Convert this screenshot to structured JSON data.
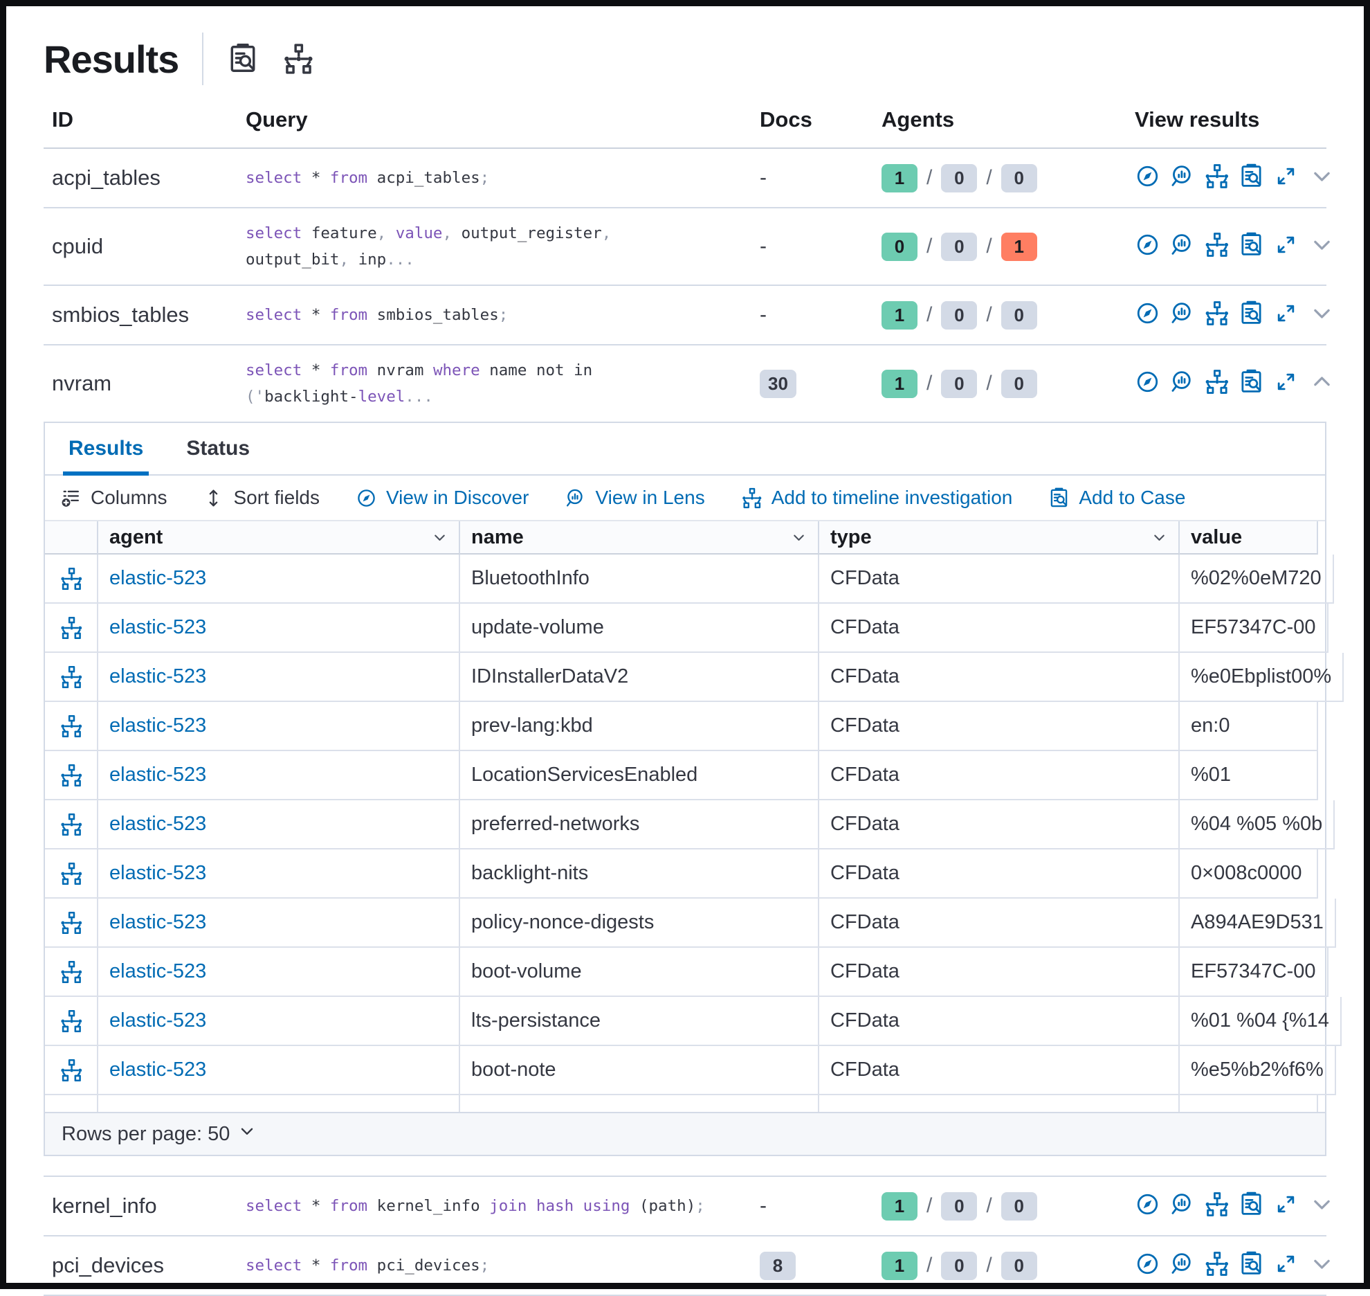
{
  "page": {
    "title": "Results"
  },
  "colors": {
    "primary": "#006BB4",
    "success_badge": "#6DCCB1",
    "danger_badge": "#FF7E62",
    "default_badge": "#D3DAE6",
    "sql_keyword": "#7C54B7"
  },
  "results_table": {
    "columns": [
      "ID",
      "Query",
      "Docs",
      "Agents",
      "View results"
    ],
    "view_actions": [
      "discover",
      "lens",
      "timeline",
      "case",
      "expand"
    ],
    "rows": [
      {
        "id": "acpi_tables",
        "docs": "-",
        "expanded": false,
        "query": [
          [
            "kw",
            "select"
          ],
          [
            "pl",
            " * "
          ],
          [
            "kw",
            "from"
          ],
          [
            "pl",
            " acpi_tables"
          ],
          [
            "pu",
            ";"
          ]
        ],
        "agents": [
          [
            "1",
            "success"
          ],
          [
            "0",
            "default"
          ],
          [
            "0",
            "default"
          ]
        ]
      },
      {
        "id": "cpuid",
        "docs": "-",
        "expanded": false,
        "query": [
          [
            "kw",
            "select"
          ],
          [
            "pl",
            " feature"
          ],
          [
            "pu",
            ", "
          ],
          [
            "kw",
            "value"
          ],
          [
            "pu",
            ", "
          ],
          [
            "pl",
            "output_register"
          ],
          [
            "pu",
            ","
          ],
          [
            "br",
            ""
          ],
          [
            "pl",
            "output_bit"
          ],
          [
            "pu",
            ", "
          ],
          [
            "pl",
            "inp"
          ],
          [
            "pu",
            "..."
          ]
        ],
        "agents": [
          [
            "0",
            "success"
          ],
          [
            "0",
            "default"
          ],
          [
            "1",
            "danger"
          ]
        ]
      },
      {
        "id": "smbios_tables",
        "docs": "-",
        "expanded": false,
        "query": [
          [
            "kw",
            "select"
          ],
          [
            "pl",
            " * "
          ],
          [
            "kw",
            "from"
          ],
          [
            "pl",
            " smbios_tables"
          ],
          [
            "pu",
            ";"
          ]
        ],
        "agents": [
          [
            "1",
            "success"
          ],
          [
            "0",
            "default"
          ],
          [
            "0",
            "default"
          ]
        ]
      },
      {
        "id": "nvram",
        "docs": "30",
        "expanded": true,
        "query": [
          [
            "kw",
            "select"
          ],
          [
            "pl",
            " * "
          ],
          [
            "kw",
            "from"
          ],
          [
            "pl",
            " nvram "
          ],
          [
            "kw",
            "where"
          ],
          [
            "pl",
            " name not in"
          ],
          [
            "br",
            ""
          ],
          [
            "pu",
            "('"
          ],
          [
            "pl",
            "backlight-"
          ],
          [
            "kw",
            "level"
          ],
          [
            "pu",
            "..."
          ]
        ],
        "agents": [
          [
            "1",
            "success"
          ],
          [
            "0",
            "default"
          ],
          [
            "0",
            "default"
          ]
        ]
      },
      {
        "id": "kernel_info",
        "docs": "-",
        "expanded": false,
        "query": [
          [
            "kw",
            "select"
          ],
          [
            "pl",
            " * "
          ],
          [
            "kw",
            "from"
          ],
          [
            "pl",
            " kernel_info "
          ],
          [
            "kw",
            "join hash using"
          ],
          [
            "pl",
            " (path)"
          ],
          [
            "pu",
            ";"
          ]
        ],
        "agents": [
          [
            "1",
            "success"
          ],
          [
            "0",
            "default"
          ],
          [
            "0",
            "default"
          ]
        ]
      },
      {
        "id": "pci_devices",
        "docs": "8",
        "expanded": false,
        "query": [
          [
            "kw",
            "select"
          ],
          [
            "pl",
            " * "
          ],
          [
            "kw",
            "from"
          ],
          [
            "pl",
            " pci_devices"
          ],
          [
            "pu",
            ";"
          ]
        ],
        "agents": [
          [
            "1",
            "success"
          ],
          [
            "0",
            "default"
          ],
          [
            "0",
            "default"
          ]
        ]
      }
    ]
  },
  "panel": {
    "tabs": [
      {
        "label": "Results",
        "active": true
      },
      {
        "label": "Status",
        "active": false
      }
    ],
    "toolbar": [
      {
        "label": "Columns",
        "icon": "columns",
        "style": "dark"
      },
      {
        "label": "Sort fields",
        "icon": "sort",
        "style": "dark"
      },
      {
        "label": "View in Discover",
        "icon": "discover",
        "style": "link"
      },
      {
        "label": "View in Lens",
        "icon": "lens",
        "style": "link"
      },
      {
        "label": "Add to timeline investigation",
        "icon": "timeline",
        "style": "link"
      },
      {
        "label": "Add to Case",
        "icon": "case",
        "style": "link"
      }
    ],
    "grid": {
      "columns": [
        "agent",
        "name",
        "type",
        "value"
      ],
      "rows": [
        {
          "agent": "elastic-523",
          "name": "BluetoothInfo",
          "type": "CFData",
          "value": "%02%0eM720"
        },
        {
          "agent": "elastic-523",
          "name": "update-volume",
          "type": "CFData",
          "value": "EF57347C-00"
        },
        {
          "agent": "elastic-523",
          "name": "IDInstallerDataV2",
          "type": "CFData",
          "value": "%e0Ebplist00%"
        },
        {
          "agent": "elastic-523",
          "name": "prev-lang:kbd",
          "type": "CFData",
          "value": "en:0"
        },
        {
          "agent": "elastic-523",
          "name": "LocationServicesEnabled",
          "type": "CFData",
          "value": "%01"
        },
        {
          "agent": "elastic-523",
          "name": "preferred-networks",
          "type": "CFData",
          "value": "%04 %05 %0b"
        },
        {
          "agent": "elastic-523",
          "name": "backlight-nits",
          "type": "CFData",
          "value": "0×008c0000"
        },
        {
          "agent": "elastic-523",
          "name": "policy-nonce-digests",
          "type": "CFData",
          "value": "A894AE9D531"
        },
        {
          "agent": "elastic-523",
          "name": "boot-volume",
          "type": "CFData",
          "value": "EF57347C-00"
        },
        {
          "agent": "elastic-523",
          "name": "lts-persistance",
          "type": "CFData",
          "value": "%01 %04 {%14"
        },
        {
          "agent": "elastic-523",
          "name": "boot-note",
          "type": "CFData",
          "value": "%e5%b2%f6%"
        }
      ]
    },
    "footer": {
      "label": "Rows per page: 50"
    }
  }
}
